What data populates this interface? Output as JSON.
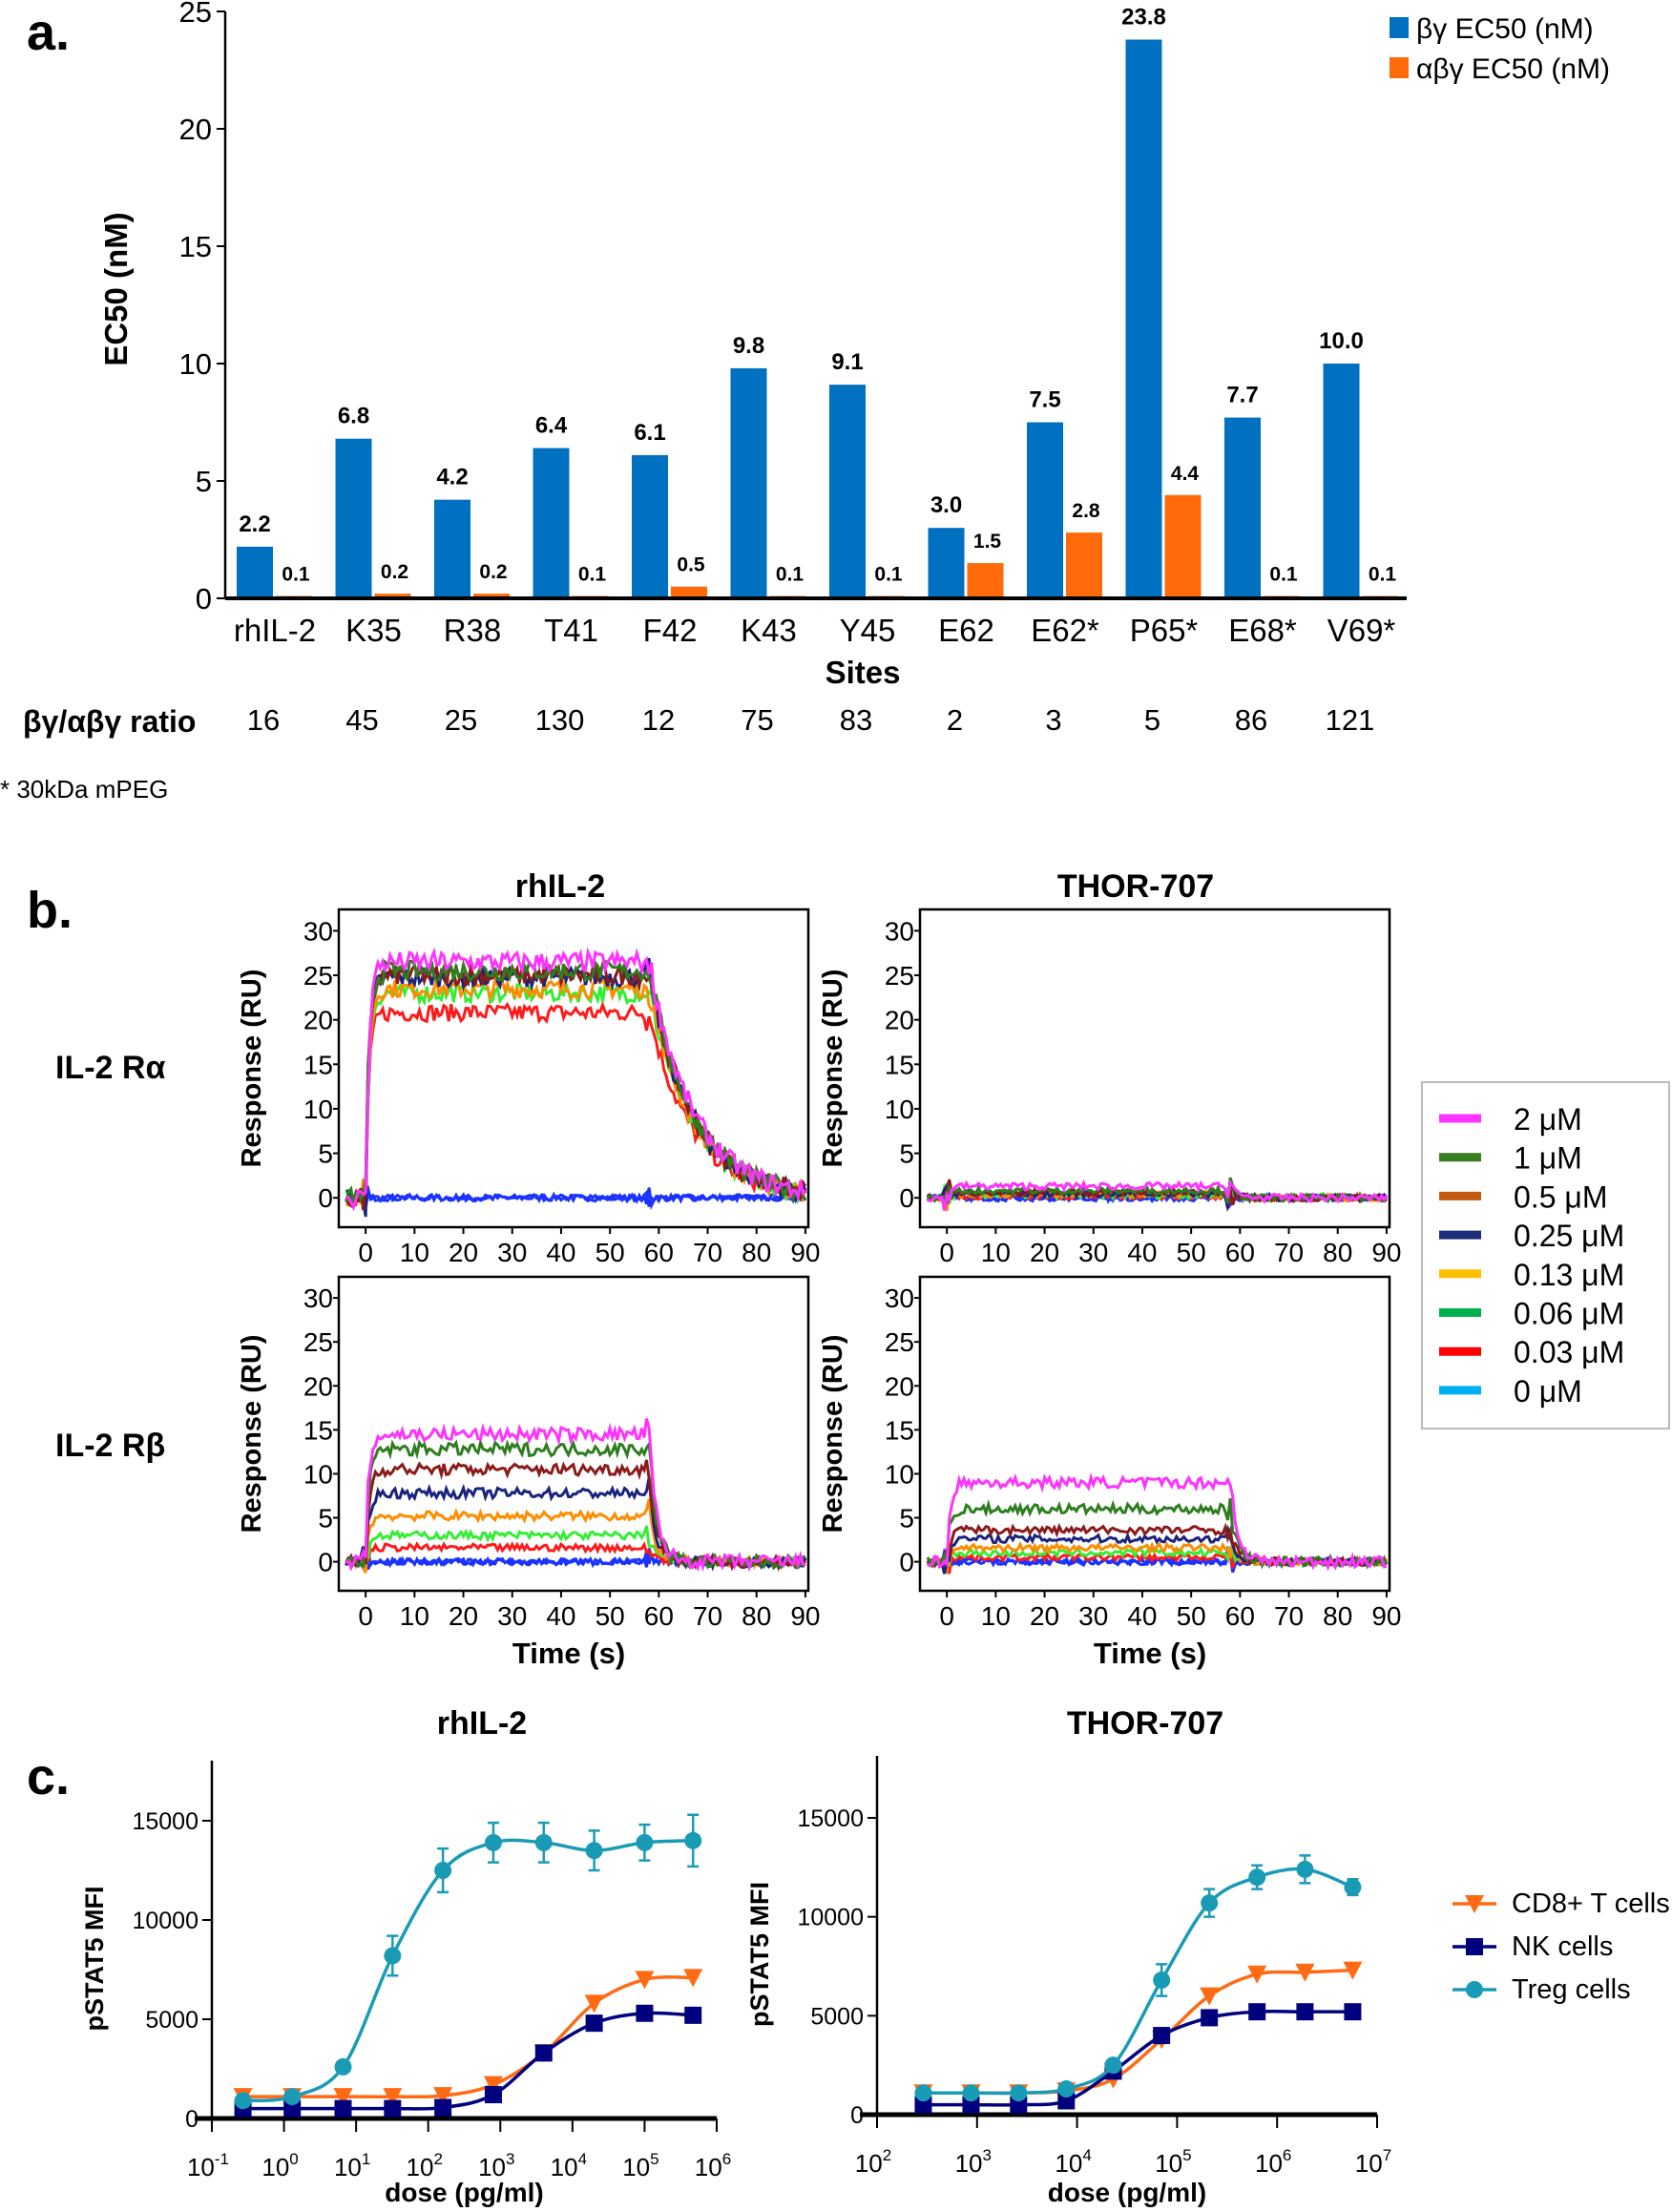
{
  "chart_data": [
    {
      "panel_label": "a.",
      "type": "bar",
      "ylabel": "EC50 (nM)",
      "xlabel": "Sites",
      "ylim": [
        0,
        25
      ],
      "yticks": [
        "0",
        "5",
        "10",
        "15",
        "20",
        "25"
      ],
      "categories": [
        "rhIL-2",
        "K35",
        "R38",
        "T41",
        "F42",
        "K43",
        "Y45",
        "E62",
        "E62*",
        "P65*",
        "E68*",
        "V69*"
      ],
      "series": [
        {
          "name": "βγ EC50 (nM)",
          "color": "#0070c0",
          "values": [
            2.2,
            6.8,
            4.2,
            6.4,
            6.1,
            9.8,
            9.1,
            3.0,
            7.5,
            23.8,
            7.7,
            10.0
          ],
          "labels": [
            "2.2",
            "6.8",
            "4.2",
            "6.4",
            "6.1",
            "9.8",
            "9.1",
            "3.0",
            "7.5",
            "23.8",
            "7.7",
            "10.0"
          ]
        },
        {
          "name": "αβγ EC50 (nM)",
          "color": "#ff6a0a",
          "values": [
            0.1,
            0.2,
            0.2,
            0.1,
            0.5,
            0.1,
            0.1,
            1.5,
            2.8,
            4.4,
            0.1,
            0.1
          ],
          "labels": [
            "0.1",
            "0.2",
            "0.2",
            "0.1",
            "0.5",
            "0.1",
            "0.1",
            "1.5",
            "2.8",
            "4.4",
            "0.1",
            "0.1"
          ]
        }
      ],
      "ratio_label": "βγ/αβγ ratio",
      "ratios": [
        "16",
        "45",
        "25",
        "130",
        "12",
        "75",
        "83",
        "2",
        "3",
        "5",
        "86",
        "121"
      ],
      "footnote": "* 30kDa mPEG",
      "legend_position": "top-right"
    },
    {
      "panel_label": "b.",
      "type": "line",
      "column_titles": [
        "rhIL-2",
        "THOR-707"
      ],
      "row_labels": [
        "IL-2 Rα",
        "IL-2 Rβ"
      ],
      "ylabel": "Response (RU)",
      "xlabel": "Time (s)",
      "xticks": [
        "0",
        "10",
        "20",
        "30",
        "40",
        "50",
        "60",
        "70",
        "80",
        "90"
      ],
      "yticks": [
        "0",
        "5",
        "10",
        "15",
        "20",
        "25",
        "30"
      ],
      "xlim": [
        0,
        90
      ],
      "ylim": [
        0,
        30
      ],
      "legend_position": "right",
      "concentrations": [
        "2 μM",
        "1 μM",
        "0.5 μM",
        "0.25 μM",
        "0.13 μM",
        "0.06 μM",
        "0.03 μM",
        "0 μM"
      ],
      "legend_colors": [
        "#ff33ff",
        "#3a7d22",
        "#c55a11",
        "#1f2c7a",
        "#ffc000",
        "#00b050",
        "#ff0000",
        "#00b0f0"
      ],
      "trace_colors": [
        "#ff33ff",
        "#2e7d1e",
        "#8b1a1a",
        "#1a237e",
        "#ff8c00",
        "#33ee33",
        "#ff1a1a",
        "#1a33ff"
      ],
      "injection_end_s": 58,
      "panels": [
        {
          "ligand": "rhIL-2",
          "receptor": "IL-2 Rα",
          "plateaus_ru": [
            26.5,
            25.5,
            25.0,
            24.8,
            23.5,
            23.0,
            20.8,
            0
          ]
        },
        {
          "ligand": "THOR-707",
          "receptor": "IL-2 Rα",
          "plateaus_ru": [
            1.3,
            0.8,
            0.6,
            0.5,
            0.4,
            0.3,
            0.2,
            0
          ]
        },
        {
          "ligand": "rhIL-2",
          "receptor": "IL-2 Rβ",
          "plateaus_ru": [
            14.5,
            12.8,
            10.5,
            7.8,
            5.2,
            3.0,
            1.6,
            0
          ]
        },
        {
          "ligand": "THOR-707",
          "receptor": "IL-2 Rβ",
          "plateaus_ru": [
            9.0,
            6.0,
            3.6,
            2.6,
            1.6,
            1.0,
            0.5,
            0
          ]
        }
      ]
    },
    {
      "panel_label": "c.",
      "type": "scatter",
      "title": "rhIL-2",
      "xlabel": "dose (pg/ml)",
      "ylabel": "pSTAT5 MFI",
      "xscale": "log",
      "log_base": "10",
      "xtick_exponents": [
        "-1",
        "0",
        "1",
        "2",
        "3",
        "4",
        "5",
        "6"
      ],
      "yticks": [
        "0",
        "5000",
        "10000",
        "15000"
      ],
      "ylim": [
        0,
        18000
      ],
      "x": [
        0.27,
        1.3,
        6.6,
        32,
        160,
        800,
        4000,
        20000,
        100000,
        470000
      ],
      "series": [
        {
          "name": "CD8+ T cells",
          "color": "#ff6a13",
          "marker": "triangle-down",
          "values": [
            1100,
            1100,
            1100,
            1100,
            1150,
            1700,
            3300,
            5800,
            7000,
            7100
          ]
        },
        {
          "name": "NK cells",
          "color": "#00007f",
          "marker": "square",
          "values": [
            500,
            500,
            500,
            500,
            550,
            1200,
            3300,
            4800,
            5300,
            5200
          ]
        },
        {
          "name": "Treg cells",
          "color": "#1a9bb5",
          "marker": "circle",
          "values": [
            900,
            1100,
            2600,
            8200,
            12500,
            13900,
            13900,
            13500,
            13900,
            14000
          ],
          "errors": [
            0,
            0,
            0,
            1000,
            1100,
            1000,
            1000,
            1000,
            900,
            1300
          ]
        }
      ]
    },
    {
      "type": "scatter",
      "title": "THOR-707",
      "xlabel": "dose (pg/ml)",
      "ylabel": "pSTAT5 MFI",
      "xscale": "log",
      "log_base": "10",
      "xtick_exponents": [
        "2",
        "3",
        "4",
        "5",
        "6",
        "7"
      ],
      "yticks": [
        "0",
        "5000",
        "10000",
        "15000"
      ],
      "ylim": [
        0,
        18000
      ],
      "x": [
        290,
        870,
        2600,
        7800,
        23000,
        70000,
        210000,
        630000,
        1900000,
        5700000
      ],
      "series": [
        {
          "name": "CD8+ T cells",
          "color": "#ff6a13",
          "marker": "triangle-down",
          "values": [
            1100,
            1100,
            1100,
            1200,
            1800,
            3800,
            6000,
            7100,
            7200,
            7300
          ]
        },
        {
          "name": "NK cells",
          "color": "#00007f",
          "marker": "square",
          "values": [
            500,
            500,
            500,
            700,
            2200,
            4000,
            4900,
            5200,
            5200,
            5200
          ]
        },
        {
          "name": "Treg cells",
          "color": "#1a9bb5",
          "marker": "circle",
          "values": [
            1100,
            1100,
            1100,
            1300,
            2500,
            6800,
            10700,
            12000,
            12400,
            11500
          ],
          "errors": [
            0,
            0,
            0,
            0,
            300,
            800,
            700,
            600,
            700,
            400
          ]
        }
      ],
      "legend": [
        "CD8+ T cells",
        "NK cells",
        "Treg cells"
      ],
      "legend_position": "right"
    }
  ]
}
